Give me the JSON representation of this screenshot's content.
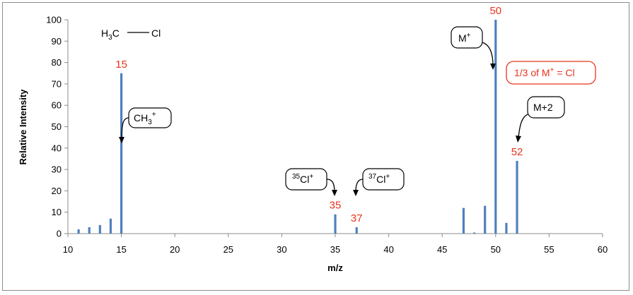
{
  "chart_data": {
    "type": "bar",
    "xlabel": "m/z",
    "ylabel": "Relative Intensity",
    "xlim": [
      10,
      60
    ],
    "ylim": [
      0,
      100
    ],
    "x_ticks": [
      10,
      15,
      20,
      25,
      30,
      35,
      40,
      45,
      50,
      55,
      60
    ],
    "y_ticks": [
      0,
      10,
      20,
      30,
      40,
      50,
      60,
      70,
      80,
      90,
      100
    ],
    "bar_color": "#4f81bd",
    "peaks": [
      {
        "x": 11,
        "y": 2
      },
      {
        "x": 12,
        "y": 3
      },
      {
        "x": 13,
        "y": 4
      },
      {
        "x": 14,
        "y": 7
      },
      {
        "x": 15,
        "y": 75
      },
      {
        "x": 35,
        "y": 9
      },
      {
        "x": 37,
        "y": 3
      },
      {
        "x": 47,
        "y": 12
      },
      {
        "x": 48,
        "y": 0.5
      },
      {
        "x": 49,
        "y": 13
      },
      {
        "x": 50,
        "y": 100
      },
      {
        "x": 51,
        "y": 5
      },
      {
        "x": 52,
        "y": 34
      }
    ],
    "peak_labels": [
      {
        "x": 15,
        "y": 75,
        "text": "15"
      },
      {
        "x": 35,
        "y": 9,
        "text": "35"
      },
      {
        "x": 37,
        "y": 3,
        "text": "37"
      },
      {
        "x": 50,
        "y": 100,
        "text": "50"
      },
      {
        "x": 52,
        "y": 34,
        "text": "52"
      }
    ],
    "annotations": {
      "molecule": {
        "left": "H",
        "left_sub": "3",
        "left_rest": "C",
        "right": "Cl"
      },
      "ch3": {
        "main": "CH",
        "sub": "3",
        "sup": "+"
      },
      "cl35": {
        "mass": "35",
        "symbol": "Cl",
        "sup": "+"
      },
      "cl37": {
        "mass": "37",
        "symbol": "Cl",
        "sup": "+"
      },
      "mplus": {
        "main": "M",
        "sup": "+"
      },
      "m2": {
        "text": "M+2"
      },
      "third": {
        "prefix": "1/3 of M",
        "sup": "+",
        "suffix": " = Cl"
      }
    },
    "annotation_color": "#e8341c"
  }
}
